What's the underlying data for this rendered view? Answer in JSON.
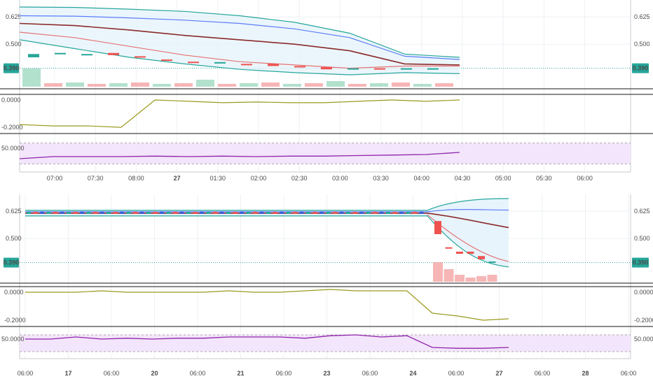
{
  "charts": [
    {
      "id": "top",
      "price_axis": {
        "ticks": [
          "0.625",
          "0.500"
        ],
        "ticks_right": [
          "0.625",
          "0.500"
        ],
        "last_price": "0.390"
      },
      "osc_axis": {
        "ticks": [
          "0.0000",
          "-0.2000"
        ]
      },
      "rsi_axis": {
        "ticks": [
          "50.0000"
        ]
      },
      "time_axis": {
        "labels": [
          {
            "t": "07:00",
            "bold": false
          },
          {
            "t": "07:30",
            "bold": false
          },
          {
            "t": "08:00",
            "bold": false
          },
          {
            "t": "27",
            "bold": true
          },
          {
            "t": "01:30",
            "bold": false
          },
          {
            "t": "02:00",
            "bold": false
          },
          {
            "t": "02:30",
            "bold": false
          },
          {
            "t": "03:00",
            "bold": false
          },
          {
            "t": "03:30",
            "bold": false
          },
          {
            "t": "04:00",
            "bold": false
          },
          {
            "t": "04:30",
            "bold": false
          },
          {
            "t": "05:00",
            "bold": false
          },
          {
            "t": "05:30",
            "bold": false
          },
          {
            "t": "06:00",
            "bold": false
          }
        ]
      }
    },
    {
      "id": "bottom",
      "price_axis": {
        "ticks": [
          "0.625",
          "0.500"
        ],
        "ticks_right": [
          "0.625",
          "0.500"
        ],
        "last_price": "0.390"
      },
      "osc_axis": {
        "ticks": [
          "0.0000",
          "-0.2000"
        ],
        "ticks_right": [
          "0.0000",
          "-0.2000"
        ]
      },
      "rsi_axis": {
        "ticks": [
          "50.0000"
        ],
        "ticks_right": [
          "50.0000"
        ]
      },
      "time_axis": {
        "labels": [
          {
            "t": "06:00",
            "bold": false
          },
          {
            "t": "17",
            "bold": true
          },
          {
            "t": "06:00",
            "bold": false
          },
          {
            "t": "20",
            "bold": true
          },
          {
            "t": "06:00",
            "bold": false
          },
          {
            "t": "21",
            "bold": true
          },
          {
            "t": "06:00",
            "bold": false
          },
          {
            "t": "23",
            "bold": true
          },
          {
            "t": "06:00",
            "bold": false
          },
          {
            "t": "24",
            "bold": true
          },
          {
            "t": "06:00",
            "bold": false
          },
          {
            "t": "27",
            "bold": true
          },
          {
            "t": "06:00",
            "bold": false
          },
          {
            "t": "28",
            "bold": true
          },
          {
            "t": "06:00",
            "bold": false
          }
        ]
      }
    }
  ],
  "chart_data": [
    {
      "type": "candlestick",
      "panel": "top",
      "price_scale": [
        0.39,
        0.5,
        0.625
      ],
      "last_price": 0.39,
      "candles": [
        {
          "o": 0.44,
          "c": 0.455,
          "up": true
        },
        {
          "o": 0.455,
          "c": 0.46,
          "up": true
        },
        {
          "o": 0.455,
          "c": 0.455,
          "up": true
        },
        {
          "o": 0.46,
          "c": 0.45,
          "up": false
        },
        {
          "o": 0.445,
          "c": 0.44,
          "up": false
        },
        {
          "o": 0.43,
          "c": 0.425,
          "up": false
        },
        {
          "o": 0.42,
          "c": 0.415,
          "up": false
        },
        {
          "o": 0.412,
          "c": 0.418,
          "up": true
        },
        {
          "o": 0.41,
          "c": 0.405,
          "up": false
        },
        {
          "o": 0.41,
          "c": 0.4,
          "up": false
        },
        {
          "o": 0.4,
          "c": 0.395,
          "up": false
        },
        {
          "o": 0.395,
          "c": 0.385,
          "up": false
        },
        {
          "o": 0.388,
          "c": 0.39,
          "up": true
        },
        {
          "o": 0.39,
          "c": 0.385,
          "up": false
        },
        {
          "o": 0.385,
          "c": 0.39,
          "up": true
        },
        {
          "o": 0.39,
          "c": 0.39,
          "up": true
        }
      ],
      "bands": {
        "upper": [
          0.67,
          0.668,
          0.66,
          0.65,
          0.63,
          0.6,
          0.55,
          0.455,
          0.44
        ],
        "mid": [
          0.63,
          0.628,
          0.62,
          0.61,
          0.595,
          0.57,
          0.53,
          0.445,
          0.43
        ],
        "basis": [
          0.595,
          0.585,
          0.565,
          0.54,
          0.52,
          0.5,
          0.47,
          0.41,
          0.405
        ],
        "red": [
          0.555,
          0.53,
          0.49,
          0.45,
          0.42,
          0.405,
          0.39,
          0.4,
          0.4
        ],
        "lower": [
          0.52,
          0.48,
          0.44,
          0.41,
          0.385,
          0.37,
          0.36,
          0.37,
          0.365
        ]
      },
      "oscillator": [
        -0.18,
        -0.19,
        -0.19,
        -0.2,
        0,
        -0.01,
        -0.02,
        -0.015,
        -0.02,
        -0.02,
        -0.01,
        0,
        -0.01,
        0
      ],
      "rsi": [
        40,
        44,
        44,
        44,
        45,
        44,
        45,
        44,
        45,
        45,
        46,
        47,
        48,
        52
      ]
    },
    {
      "type": "candlestick",
      "panel": "bottom",
      "price_scale": [
        0.39,
        0.5,
        0.625
      ],
      "last_price": 0.39,
      "candles_count_flat": 60,
      "flat_level": 0.616,
      "drop_candles": [
        {
          "o": 0.58,
          "c": 0.52,
          "up": false
        },
        {
          "o": 0.46,
          "c": 0.46,
          "up": false
        },
        {
          "o": 0.44,
          "c": 0.43,
          "up": false
        },
        {
          "o": 0.44,
          "c": 0.43,
          "up": false
        },
        {
          "o": 0.42,
          "c": 0.405,
          "up": false
        },
        {
          "o": 0.395,
          "c": 0.39,
          "up": true
        }
      ],
      "oscillator": [
        0,
        0,
        0,
        0.01,
        0,
        0,
        0,
        0,
        0.01,
        0,
        0,
        0.01,
        0.02,
        0.01,
        0.01,
        0.01,
        -0.15,
        -0.17,
        -0.2,
        -0.19
      ],
      "rsi": [
        60,
        60,
        65,
        60,
        62,
        60,
        62,
        62,
        65,
        65,
        65,
        62,
        68,
        70,
        65,
        68,
        40,
        38,
        38,
        40
      ]
    }
  ]
}
